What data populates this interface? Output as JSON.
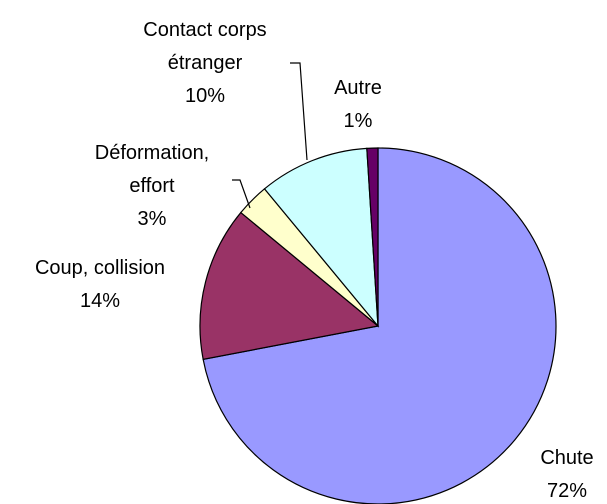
{
  "chart_data": {
    "type": "pie",
    "categories": [
      "Chute",
      "Coup, collision",
      "Déformation, effort",
      "Contact corps étranger",
      "Autre"
    ],
    "values": [
      72,
      14,
      3,
      10,
      1
    ],
    "value_labels": [
      "72%",
      "14%",
      "3%",
      "10%",
      "1%"
    ],
    "colors": [
      "#9999ff",
      "#993366",
      "#ffffcc",
      "#ccffff",
      "#660066"
    ],
    "start_angle": 0,
    "direction": "clockwise"
  }
}
